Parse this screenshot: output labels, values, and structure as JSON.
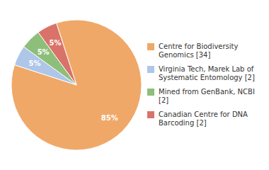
{
  "chart_data": {
    "type": "pie",
    "labels": [
      "Centre for Biodiversity\nGenomics [34]",
      "Virginia Tech, Marek Lab of\nSystematic Entomology [2]",
      "Mined from GenBank, NCBI [2]",
      "Canadian Centre for DNA\nBarcoding [2]"
    ],
    "values": [
      85,
      5,
      5,
      5
    ],
    "value_labels": [
      "85%",
      "5%",
      "5%",
      "5%"
    ],
    "colors": [
      "#f0a868",
      "#aec6e8",
      "#8dbf7a",
      "#d9736a"
    ],
    "data_labels": true,
    "legend": "right"
  }
}
